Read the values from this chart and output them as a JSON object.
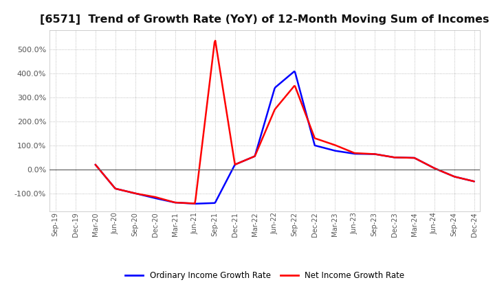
{
  "title": "[6571]  Trend of Growth Rate (YoY) of 12-Month Moving Sum of Incomes",
  "title_fontsize": 11.5,
  "legend_labels": [
    "Ordinary Income Growth Rate",
    "Net Income Growth Rate"
  ],
  "legend_colors": [
    "#0000FF",
    "#FF0000"
  ],
  "background_color": "#FFFFFF",
  "plot_bg_color": "#FFFFFF",
  "grid_color": "#AAAAAA",
  "x_labels": [
    "Sep-19",
    "Dec-19",
    "Mar-20",
    "Jun-20",
    "Sep-20",
    "Dec-20",
    "Mar-21",
    "Jun-21",
    "Sep-21",
    "Dec-21",
    "Mar-22",
    "Jun-22",
    "Sep-22",
    "Dec-22",
    "Mar-23",
    "Jun-23",
    "Sep-23",
    "Dec-23",
    "Mar-24",
    "Jun-24",
    "Sep-24",
    "Dec-24"
  ],
  "ordinary_income": [
    null,
    null,
    20,
    -80,
    -100,
    -120,
    -138,
    -143,
    -140,
    20,
    55,
    340,
    410,
    100,
    78,
    65,
    64,
    50,
    48,
    5,
    -30,
    -50
  ],
  "net_income": [
    null,
    null,
    20,
    -80,
    -100,
    -115,
    -138,
    -142,
    545,
    20,
    55,
    250,
    350,
    130,
    102,
    68,
    64,
    50,
    48,
    5,
    -30,
    -50
  ],
  "ylim": [
    -175,
    580
  ],
  "yticks": [
    -100,
    0,
    100,
    200,
    300,
    400,
    500
  ],
  "line_width": 1.8
}
